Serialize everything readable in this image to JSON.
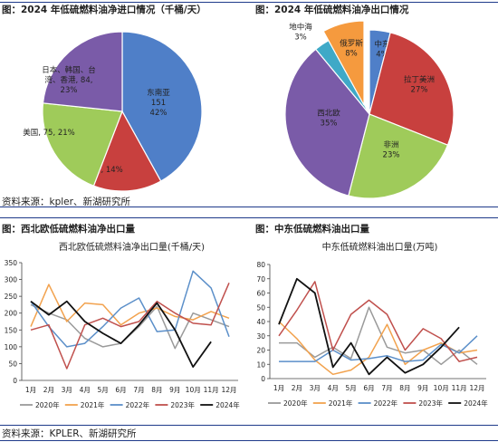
{
  "figures": {
    "top_left_title": "图：2024 年低硫燃料油净进口情况（千桶/天）",
    "top_right_title": "图：2024 年低硫燃料油净出口情况",
    "bottom_left_title": "图：西北欧低硫燃料油净出口量",
    "bottom_right_title": "图：中东低硫燃料油出口量"
  },
  "sources": {
    "top": "资料来源：kpler、新湖研究所",
    "bottom": "资料来源：KPLER、新湖研究所"
  },
  "chart_data": [
    {
      "id": "pie_imports",
      "type": "pie",
      "title": "",
      "slices": [
        {
          "name": "东南亚",
          "value": 151,
          "percent": "42%",
          "label_lines": [
            "东南亚",
            "151",
            "42%"
          ],
          "color": "#4f7fc8"
        },
        {
          "name": "中国",
          "value": 50,
          "percent": "14%",
          "label_lines": [
            "中国, 50, 14%"
          ],
          "color": "#c8403e"
        },
        {
          "name": "美国",
          "value": 75,
          "percent": "21%",
          "label_lines": [
            "美国, 75, 21%"
          ],
          "color": "#9fcb5a"
        },
        {
          "name": "日本、韩国、台湾、香港",
          "value": 84,
          "percent": "23%",
          "label_lines": [
            "日本、韩国、台",
            "湾、香港, 84,",
            "23%"
          ],
          "color": "#7a5ba8"
        }
      ]
    },
    {
      "id": "pie_exports",
      "type": "pie",
      "title": "",
      "slices": [
        {
          "name": "中东",
          "percent": "4%",
          "label_lines": [
            "中东",
            "4%"
          ],
          "color": "#4f7fc8"
        },
        {
          "name": "拉丁美洲",
          "percent": "27%",
          "label_lines": [
            "拉丁美洲",
            "27%"
          ],
          "color": "#c8403e"
        },
        {
          "name": "非洲",
          "percent": "23%",
          "label_lines": [
            "非洲",
            "23%"
          ],
          "color": "#9fcb5a"
        },
        {
          "name": "西北欧",
          "percent": "35%",
          "label_lines": [
            "西北欧",
            "35%"
          ],
          "color": "#7a5ba8"
        },
        {
          "name": "地中海",
          "percent": "3%",
          "label_lines": [
            "地中海",
            "3%"
          ],
          "color": "#3fa9c7"
        },
        {
          "name": "俄罗斯",
          "percent": "8%",
          "label_lines": [
            "俄罗斯",
            "8%"
          ],
          "color": "#f59a3e"
        }
      ]
    },
    {
      "id": "line_nweurope",
      "type": "line",
      "title": "西北欧低硫燃料油净出口量(千桶/天)",
      "categories": [
        "1月",
        "2月",
        "3月",
        "4月",
        "5月",
        "6月",
        "7月",
        "8月",
        "9月",
        "10月",
        "11月",
        "12月"
      ],
      "ylim": [
        0,
        350
      ],
      "yticks": [
        0,
        50,
        100,
        150,
        200,
        250,
        300,
        350
      ],
      "grid": false,
      "legend": "bottom",
      "series": [
        {
          "name": "2020年",
          "color": "#9a9a9a",
          "values": [
            225,
            200,
            180,
            125,
            100,
            110,
            160,
            220,
            95,
            200,
            180,
            160
          ]
        },
        {
          "name": "2021年",
          "color": "#f2a24e",
          "values": [
            160,
            285,
            175,
            230,
            225,
            165,
            200,
            215,
            190,
            180,
            205,
            185
          ]
        },
        {
          "name": "2022年",
          "color": "#5b8fc9",
          "values": [
            235,
            160,
            100,
            110,
            160,
            215,
            245,
            145,
            150,
            325,
            275,
            130
          ]
        },
        {
          "name": "2023年",
          "color": "#c0504d",
          "values": [
            150,
            165,
            35,
            165,
            185,
            160,
            175,
            235,
            200,
            170,
            165,
            290
          ]
        },
        {
          "name": "2024年",
          "color": "#111111",
          "values": [
            235,
            195,
            235,
            175,
            140,
            110,
            165,
            230,
            150,
            40,
            115,
            null
          ]
        }
      ]
    },
    {
      "id": "line_middle_east",
      "type": "line",
      "title": "中东低硫燃料油出口量(万吨)",
      "categories": [
        "1月",
        "2月",
        "3月",
        "4月",
        "5月",
        "6月",
        "7月",
        "8月",
        "9月",
        "10月",
        "11月",
        "12月"
      ],
      "ylim": [
        0,
        80
      ],
      "yticks": [
        0,
        10,
        20,
        30,
        40,
        50,
        60,
        70,
        80
      ],
      "grid": false,
      "legend": "bottom",
      "series": [
        {
          "name": "2020年",
          "color": "#9a9a9a",
          "values": [
            25,
            25,
            15,
            22,
            14,
            50,
            22,
            18,
            20,
            10,
            20,
            10
          ]
        },
        {
          "name": "2021年",
          "color": "#f2a24e",
          "values": [
            40,
            28,
            13,
            3,
            6,
            15,
            38,
            10,
            20,
            25,
            18,
            20
          ]
        },
        {
          "name": "2022年",
          "color": "#5b8fc9",
          "values": [
            12,
            12,
            12,
            20,
            13,
            14,
            16,
            12,
            13,
            24,
            18,
            30
          ]
        },
        {
          "name": "2023年",
          "color": "#c0504d",
          "values": [
            30,
            48,
            68,
            20,
            45,
            55,
            45,
            20,
            35,
            28,
            12,
            15
          ]
        },
        {
          "name": "2024年",
          "color": "#111111",
          "values": [
            38,
            70,
            60,
            8,
            25,
            3,
            15,
            4,
            10,
            22,
            36,
            null
          ]
        }
      ]
    }
  ]
}
